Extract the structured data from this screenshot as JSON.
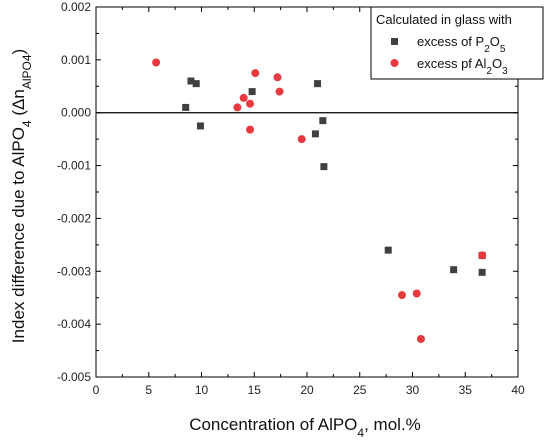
{
  "chart_data": {
    "type": "scatter",
    "xlabel": {
      "main": "Concentration of AlPO",
      "sub": "4",
      "rest": ", mol.%"
    },
    "ylabel": {
      "main": "Index difference due to AlPO",
      "sub1": "4",
      "mid": " (Δn",
      "sub2": "AlPO4",
      "end": ")"
    },
    "xlim": [
      0,
      40
    ],
    "ylim": [
      -0.005,
      0.002
    ],
    "x_ticks": [
      0,
      5,
      10,
      15,
      20,
      25,
      30,
      35,
      40
    ],
    "x_tick_labels": [
      "0",
      "5",
      "10",
      "15",
      "20",
      "25",
      "30",
      "35",
      "40"
    ],
    "y_ticks": [
      -0.005,
      -0.004,
      -0.003,
      -0.002,
      -0.001,
      0.0,
      0.001,
      0.002
    ],
    "y_tick_labels": [
      "-0.005",
      "-0.004",
      "-0.003",
      "-0.002",
      "-0.001",
      "0.000",
      "0.001",
      "0.002"
    ],
    "reference_line_y": 0,
    "grid": false,
    "legend": {
      "placement": "top-right",
      "title": "Calculated in glass with",
      "entries": [
        {
          "main": "excess of P",
          "sub1": "2",
          "mid": "O",
          "sub2": "5"
        },
        {
          "main": "excess pf Al",
          "sub1": "2",
          "mid": "O",
          "sub2": "3"
        }
      ]
    },
    "series": [
      {
        "marker": "square",
        "color": "#404040",
        "points": [
          [
            8.5,
            0.0001
          ],
          [
            9.0,
            0.0006
          ],
          [
            9.5,
            0.00055
          ],
          [
            9.9,
            -0.00025
          ],
          [
            14.8,
            0.0004
          ],
          [
            20.8,
            -0.0004
          ],
          [
            21.0,
            0.00055
          ],
          [
            21.5,
            -0.00015
          ],
          [
            21.6,
            -0.00102
          ],
          [
            27.7,
            -0.0026
          ],
          [
            33.9,
            -0.00297
          ],
          [
            36.6,
            -0.0027
          ],
          [
            36.6,
            -0.00302
          ]
        ]
      },
      {
        "marker": "circle",
        "color": "#e8393f",
        "points": [
          [
            5.7,
            0.00095
          ],
          [
            13.4,
            0.0001
          ],
          [
            14.0,
            0.00028
          ],
          [
            14.6,
            0.00017
          ],
          [
            14.6,
            -0.00032
          ],
          [
            15.1,
            0.00075
          ],
          [
            17.2,
            0.00067
          ],
          [
            17.4,
            0.0004
          ],
          [
            19.5,
            -0.0005
          ],
          [
            29.0,
            -0.00345
          ],
          [
            30.4,
            -0.00342
          ],
          [
            30.8,
            -0.00428
          ],
          [
            36.6,
            -0.0027
          ]
        ]
      }
    ]
  }
}
